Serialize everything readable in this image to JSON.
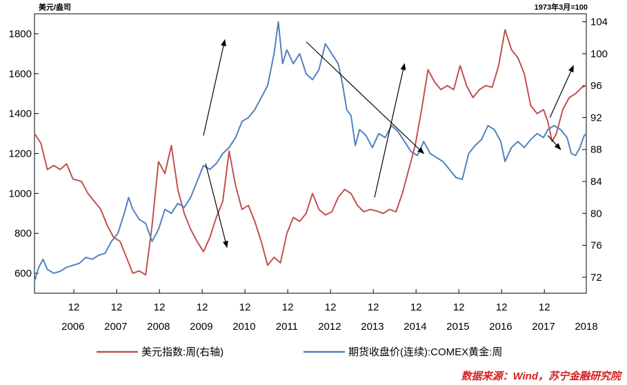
{
  "chart_data": {
    "type": "line",
    "left_axis_unit": "美元/盎司",
    "right_axis_unit": "1973年3月=100",
    "left_axis": {
      "min": 500,
      "max": 1900,
      "ticks": [
        600,
        800,
        1000,
        1200,
        1400,
        1600,
        1800
      ]
    },
    "right_axis": {
      "min": 70,
      "max": 105,
      "ticks": [
        72,
        76,
        80,
        84,
        88,
        92,
        96,
        100,
        104
      ]
    },
    "x_axis": {
      "min": 2006.0,
      "max": 2018.9,
      "tick_marks": [
        2006.92,
        2007.92,
        2008.92,
        2009.92,
        2010.92,
        2011.92,
        2012.92,
        2013.92,
        2014.92,
        2015.92,
        2016.92,
        2017.92
      ],
      "tick_labels": [
        "12",
        "12",
        "12",
        "12",
        "12",
        "12",
        "12",
        "12",
        "12",
        "12",
        "12",
        "12"
      ],
      "year_labels": [
        {
          "year": 2006.9,
          "label": "2006"
        },
        {
          "year": 2007.9,
          "label": "2007"
        },
        {
          "year": 2008.9,
          "label": "2008"
        },
        {
          "year": 2009.9,
          "label": "2009"
        },
        {
          "year": 2010.9,
          "label": "2010"
        },
        {
          "year": 2011.9,
          "label": "2011"
        },
        {
          "year": 2012.9,
          "label": "2012"
        },
        {
          "year": 2013.9,
          "label": "2013"
        },
        {
          "year": 2014.9,
          "label": "2014"
        },
        {
          "year": 2015.9,
          "label": "2015"
        },
        {
          "year": 2016.9,
          "label": "2016"
        },
        {
          "year": 2017.9,
          "label": "2017"
        },
        {
          "year": 2018.9,
          "label": "2018"
        }
      ]
    },
    "series": [
      {
        "name": "美元指数:周(右轴)",
        "axis": "right",
        "color": "#c0504d",
        "points": [
          [
            2006.0,
            90.0
          ],
          [
            2006.15,
            88.8
          ],
          [
            2006.3,
            85.5
          ],
          [
            2006.45,
            86.0
          ],
          [
            2006.6,
            85.5
          ],
          [
            2006.75,
            86.2
          ],
          [
            2006.9,
            84.3
          ],
          [
            2007.1,
            84.0
          ],
          [
            2007.25,
            82.5
          ],
          [
            2007.4,
            81.5
          ],
          [
            2007.55,
            80.5
          ],
          [
            2007.7,
            78.5
          ],
          [
            2007.85,
            77.0
          ],
          [
            2008.0,
            76.5
          ],
          [
            2008.15,
            74.5
          ],
          [
            2008.3,
            72.5
          ],
          [
            2008.45,
            72.8
          ],
          [
            2008.6,
            72.3
          ],
          [
            2008.75,
            78.5
          ],
          [
            2008.9,
            86.5
          ],
          [
            2009.05,
            85.0
          ],
          [
            2009.2,
            88.5
          ],
          [
            2009.35,
            83.0
          ],
          [
            2009.5,
            80.0
          ],
          [
            2009.65,
            78.0
          ],
          [
            2009.8,
            76.5
          ],
          [
            2009.95,
            75.2
          ],
          [
            2010.1,
            77.0
          ],
          [
            2010.25,
            79.5
          ],
          [
            2010.4,
            81.5
          ],
          [
            2010.55,
            87.8
          ],
          [
            2010.7,
            83.5
          ],
          [
            2010.85,
            80.5
          ],
          [
            2011.0,
            81.0
          ],
          [
            2011.15,
            79.0
          ],
          [
            2011.3,
            76.5
          ],
          [
            2011.45,
            73.5
          ],
          [
            2011.6,
            74.5
          ],
          [
            2011.75,
            73.8
          ],
          [
            2011.9,
            77.5
          ],
          [
            2012.05,
            79.5
          ],
          [
            2012.2,
            79.0
          ],
          [
            2012.35,
            80.0
          ],
          [
            2012.5,
            82.5
          ],
          [
            2012.65,
            80.5
          ],
          [
            2012.8,
            79.8
          ],
          [
            2012.95,
            80.2
          ],
          [
            2013.1,
            82.0
          ],
          [
            2013.25,
            83.0
          ],
          [
            2013.4,
            82.5
          ],
          [
            2013.55,
            81.0
          ],
          [
            2013.7,
            80.2
          ],
          [
            2013.85,
            80.5
          ],
          [
            2014.0,
            80.3
          ],
          [
            2014.15,
            80.0
          ],
          [
            2014.3,
            80.5
          ],
          [
            2014.45,
            80.2
          ],
          [
            2014.6,
            82.5
          ],
          [
            2014.75,
            85.5
          ],
          [
            2014.9,
            88.5
          ],
          [
            2015.05,
            93.0
          ],
          [
            2015.2,
            98.0
          ],
          [
            2015.35,
            96.5
          ],
          [
            2015.5,
            95.5
          ],
          [
            2015.65,
            96.0
          ],
          [
            2015.8,
            95.5
          ],
          [
            2015.95,
            98.5
          ],
          [
            2016.1,
            96.0
          ],
          [
            2016.25,
            94.5
          ],
          [
            2016.4,
            95.5
          ],
          [
            2016.55,
            96.0
          ],
          [
            2016.7,
            95.8
          ],
          [
            2016.85,
            98.5
          ],
          [
            2017.0,
            103.0
          ],
          [
            2017.15,
            100.5
          ],
          [
            2017.3,
            99.5
          ],
          [
            2017.45,
            97.5
          ],
          [
            2017.6,
            93.5
          ],
          [
            2017.75,
            92.5
          ],
          [
            2017.9,
            93.0
          ],
          [
            2018.0,
            91.5
          ],
          [
            2018.1,
            89.0
          ],
          [
            2018.2,
            90.0
          ],
          [
            2018.35,
            93.0
          ],
          [
            2018.5,
            94.5
          ],
          [
            2018.65,
            95.0
          ],
          [
            2018.8,
            95.8
          ],
          [
            2018.9,
            96.0
          ]
        ]
      },
      {
        "name": "期货收盘价(连续):COMEX黄金:周",
        "axis": "left",
        "color": "#4f81bd",
        "points": [
          [
            2006.0,
            560
          ],
          [
            2006.1,
            630
          ],
          [
            2006.2,
            670
          ],
          [
            2006.3,
            620
          ],
          [
            2006.45,
            600
          ],
          [
            2006.6,
            610
          ],
          [
            2006.75,
            630
          ],
          [
            2006.9,
            640
          ],
          [
            2007.05,
            650
          ],
          [
            2007.2,
            680
          ],
          [
            2007.35,
            670
          ],
          [
            2007.5,
            690
          ],
          [
            2007.65,
            700
          ],
          [
            2007.8,
            760
          ],
          [
            2007.95,
            800
          ],
          [
            2008.1,
            900
          ],
          [
            2008.2,
            980
          ],
          [
            2008.3,
            920
          ],
          [
            2008.45,
            870
          ],
          [
            2008.6,
            850
          ],
          [
            2008.75,
            760
          ],
          [
            2008.9,
            820
          ],
          [
            2009.05,
            920
          ],
          [
            2009.2,
            900
          ],
          [
            2009.35,
            950
          ],
          [
            2009.5,
            930
          ],
          [
            2009.65,
            980
          ],
          [
            2009.8,
            1060
          ],
          [
            2009.95,
            1140
          ],
          [
            2010.1,
            1120
          ],
          [
            2010.25,
            1150
          ],
          [
            2010.4,
            1200
          ],
          [
            2010.55,
            1230
          ],
          [
            2010.7,
            1280
          ],
          [
            2010.85,
            1360
          ],
          [
            2011.0,
            1380
          ],
          [
            2011.15,
            1420
          ],
          [
            2011.3,
            1480
          ],
          [
            2011.45,
            1540
          ],
          [
            2011.6,
            1700
          ],
          [
            2011.7,
            1860
          ],
          [
            2011.8,
            1650
          ],
          [
            2011.9,
            1720
          ],
          [
            2012.05,
            1650
          ],
          [
            2012.2,
            1700
          ],
          [
            2012.35,
            1600
          ],
          [
            2012.5,
            1570
          ],
          [
            2012.65,
            1620
          ],
          [
            2012.8,
            1750
          ],
          [
            2012.95,
            1700
          ],
          [
            2013.1,
            1650
          ],
          [
            2013.2,
            1550
          ],
          [
            2013.3,
            1420
          ],
          [
            2013.4,
            1390
          ],
          [
            2013.5,
            1240
          ],
          [
            2013.6,
            1320
          ],
          [
            2013.75,
            1290
          ],
          [
            2013.9,
            1230
          ],
          [
            2014.05,
            1300
          ],
          [
            2014.2,
            1280
          ],
          [
            2014.35,
            1340
          ],
          [
            2014.5,
            1310
          ],
          [
            2014.65,
            1260
          ],
          [
            2014.8,
            1210
          ],
          [
            2014.95,
            1190
          ],
          [
            2015.1,
            1260
          ],
          [
            2015.25,
            1200
          ],
          [
            2015.4,
            1180
          ],
          [
            2015.55,
            1160
          ],
          [
            2015.7,
            1120
          ],
          [
            2015.85,
            1080
          ],
          [
            2016.0,
            1070
          ],
          [
            2016.15,
            1200
          ],
          [
            2016.3,
            1240
          ],
          [
            2016.45,
            1270
          ],
          [
            2016.6,
            1340
          ],
          [
            2016.75,
            1320
          ],
          [
            2016.9,
            1260
          ],
          [
            2017.0,
            1160
          ],
          [
            2017.15,
            1230
          ],
          [
            2017.3,
            1260
          ],
          [
            2017.45,
            1230
          ],
          [
            2017.6,
            1270
          ],
          [
            2017.75,
            1300
          ],
          [
            2017.9,
            1280
          ],
          [
            2018.0,
            1320
          ],
          [
            2018.15,
            1340
          ],
          [
            2018.3,
            1320
          ],
          [
            2018.45,
            1280
          ],
          [
            2018.55,
            1200
          ],
          [
            2018.65,
            1190
          ],
          [
            2018.75,
            1230
          ],
          [
            2018.85,
            1290
          ],
          [
            2018.9,
            1300
          ]
        ]
      }
    ],
    "annotations": [
      {
        "type": "arrow",
        "from": [
          2009.95,
          1290
        ],
        "to": [
          2010.45,
          1770
        ]
      },
      {
        "type": "arrow",
        "from": [
          2010.0,
          1150
        ],
        "to": [
          2010.5,
          730
        ]
      },
      {
        "type": "arrow",
        "from": [
          2012.35,
          1760
        ],
        "to": [
          2015.1,
          1200
        ]
      },
      {
        "type": "arrow",
        "from": [
          2013.95,
          980
        ],
        "to": [
          2014.65,
          1650
        ]
      },
      {
        "type": "arrow",
        "from": [
          2018.05,
          1380
        ],
        "to": [
          2018.6,
          1640
        ]
      },
      {
        "type": "arrow",
        "from": [
          2018.0,
          1290
        ],
        "to": [
          2018.3,
          1220
        ]
      }
    ],
    "legend": {
      "position": "bottom",
      "items": [
        {
          "label": "美元指数:周(右轴)",
          "color": "#c0504d"
        },
        {
          "label": "期货收盘价(连续):COMEX黄金:周",
          "color": "#4f81bd"
        }
      ]
    },
    "source_note": "数据来源：Wind，苏宁金融研究院",
    "grid": false
  }
}
